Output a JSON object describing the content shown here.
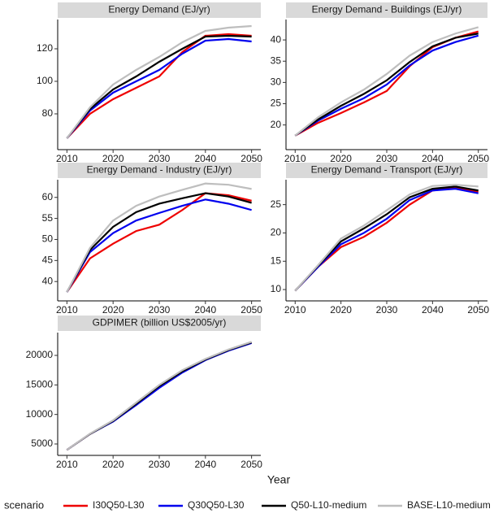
{
  "x_label": "Year",
  "legend_title": "scenario",
  "chart_data": [
    {
      "type": "line",
      "title": "Energy Demand (EJ/yr)",
      "x": [
        2010,
        2015,
        2020,
        2025,
        2030,
        2035,
        2040,
        2045,
        2050
      ],
      "xlim": [
        2008,
        2052
      ],
      "xticks": [
        2010,
        2020,
        2030,
        2040,
        2050
      ],
      "ylim": [
        58,
        138
      ],
      "yticks": [
        80,
        100,
        120
      ],
      "series": [
        {
          "name": "I30Q50-L30",
          "color": "#ee0000",
          "values": [
            65,
            80,
            89,
            96,
            103,
            118,
            128,
            129,
            128
          ]
        },
        {
          "name": "Q30Q50-L30",
          "color": "#0000ee",
          "values": [
            65,
            82,
            93,
            100,
            107,
            117,
            125,
            126,
            124.5
          ]
        },
        {
          "name": "Q50-L10-medium",
          "color": "#000000",
          "values": [
            65,
            83,
            95,
            103,
            112,
            120,
            127.5,
            128,
            127.5
          ]
        },
        {
          "name": "BASE-L10-medium",
          "color": "#bebebe",
          "values": [
            65,
            84,
            98,
            107,
            115,
            124,
            131,
            133,
            134
          ]
        }
      ]
    },
    {
      "type": "line",
      "title": "Energy Demand - Buildings (EJ/yr)",
      "x": [
        2010,
        2015,
        2020,
        2025,
        2030,
        2035,
        2040,
        2045,
        2050
      ],
      "xlim": [
        2008,
        2052
      ],
      "xticks": [
        2010,
        2020,
        2030,
        2040,
        2050
      ],
      "ylim": [
        14.2,
        44.8
      ],
      "yticks": [
        20,
        25,
        30,
        35,
        40
      ],
      "series": [
        {
          "name": "I30Q50-L30",
          "color": "#ee0000",
          "values": [
            17.5,
            20.5,
            22.8,
            25.3,
            28,
            33.8,
            38.3,
            40.5,
            42
          ]
        },
        {
          "name": "Q30Q50-L30",
          "color": "#0000ee",
          "values": [
            17.5,
            21,
            23.8,
            26.3,
            29.5,
            34,
            37.5,
            39.5,
            41
          ]
        },
        {
          "name": "Q50-L10-medium",
          "color": "#000000",
          "values": [
            17.5,
            21.3,
            24.5,
            27.3,
            30.5,
            34.8,
            38.5,
            40.5,
            41.5
          ]
        },
        {
          "name": "BASE-L10-medium",
          "color": "#bebebe",
          "values": [
            17.5,
            21.8,
            25.3,
            28.3,
            32,
            36.3,
            39.5,
            41.5,
            43
          ]
        }
      ]
    },
    {
      "type": "line",
      "title": "Energy Demand - Industry (EJ/yr)",
      "x": [
        2010,
        2015,
        2020,
        2025,
        2030,
        2035,
        2040,
        2045,
        2050
      ],
      "xlim": [
        2008,
        2052
      ],
      "xticks": [
        2010,
        2020,
        2030,
        2040,
        2050
      ],
      "ylim": [
        35.4,
        64.2
      ],
      "yticks": [
        40,
        45,
        50,
        55,
        60
      ],
      "series": [
        {
          "name": "I30Q50-L30",
          "color": "#ee0000",
          "values": [
            37.5,
            45.5,
            49,
            52,
            53.5,
            57,
            61,
            60.5,
            59.2
          ]
        },
        {
          "name": "Q30Q50-L30",
          "color": "#0000ee",
          "values": [
            37.5,
            47,
            51.5,
            54.5,
            56.3,
            58,
            59.5,
            58.5,
            57
          ]
        },
        {
          "name": "Q50-L10-medium",
          "color": "#000000",
          "values": [
            37.5,
            47.5,
            53,
            56.5,
            58.5,
            59.8,
            61,
            60.2,
            58.7
          ]
        },
        {
          "name": "BASE-L10-medium",
          "color": "#bebebe",
          "values": [
            37.5,
            48,
            54.5,
            58,
            60.2,
            61.8,
            63.3,
            63,
            62
          ]
        }
      ]
    },
    {
      "type": "line",
      "title": "Energy Demand - Transport (EJ/yr)",
      "x": [
        2010,
        2015,
        2020,
        2025,
        2030,
        2035,
        2040,
        2045,
        2050
      ],
      "xlim": [
        2008,
        2052
      ],
      "xticks": [
        2010,
        2020,
        2030,
        2040,
        2050
      ],
      "ylim": [
        8,
        29.4
      ],
      "yticks": [
        10,
        15,
        20,
        25
      ],
      "series": [
        {
          "name": "I30Q50-L30",
          "color": "#ee0000",
          "values": [
            9.8,
            14,
            17.5,
            19.3,
            21.8,
            25,
            27.5,
            28,
            27.3
          ]
        },
        {
          "name": "Q30Q50-L30",
          "color": "#0000ee",
          "values": [
            9.8,
            14,
            18,
            20,
            22.5,
            25.8,
            27.5,
            27.8,
            27
          ]
        },
        {
          "name": "Q50-L10-medium",
          "color": "#000000",
          "values": [
            9.8,
            14.2,
            18.5,
            20.8,
            23.3,
            26.3,
            27.8,
            28.2,
            27.5
          ]
        },
        {
          "name": "BASE-L10-medium",
          "color": "#bebebe",
          "values": [
            9.8,
            14.3,
            19,
            21.3,
            24,
            26.8,
            28.3,
            28.5,
            28.2
          ]
        }
      ]
    },
    {
      "type": "line",
      "title": "GDPIMER (billion US$2005/yr)",
      "x": [
        2010,
        2015,
        2020,
        2025,
        2030,
        2035,
        2040,
        2045,
        2050
      ],
      "xlim": [
        2008,
        2052
      ],
      "xticks": [
        2010,
        2020,
        2030,
        2040,
        2050
      ],
      "ylim": [
        3070,
        23860
      ],
      "yticks": [
        5000,
        10000,
        15000,
        20000
      ],
      "series": [
        {
          "name": "I30Q50-L30",
          "color": "#ee0000",
          "values": [
            4000,
            6700,
            8900,
            11700,
            14600,
            17200,
            19300,
            20900,
            22200
          ]
        },
        {
          "name": "Q30Q50-L30",
          "color": "#0000ee",
          "values": [
            4000,
            6700,
            8800,
            11600,
            14500,
            17100,
            19200,
            20800,
            22100
          ]
        },
        {
          "name": "Q50-L10-medium",
          "color": "#000000",
          "values": [
            4000,
            6700,
            8900,
            11800,
            14800,
            17300,
            19300,
            20900,
            22200
          ]
        },
        {
          "name": "BASE-L10-medium",
          "color": "#bebebe",
          "values": [
            4000,
            6750,
            9000,
            12000,
            15000,
            17500,
            19400,
            21000,
            22300
          ]
        }
      ]
    }
  ]
}
